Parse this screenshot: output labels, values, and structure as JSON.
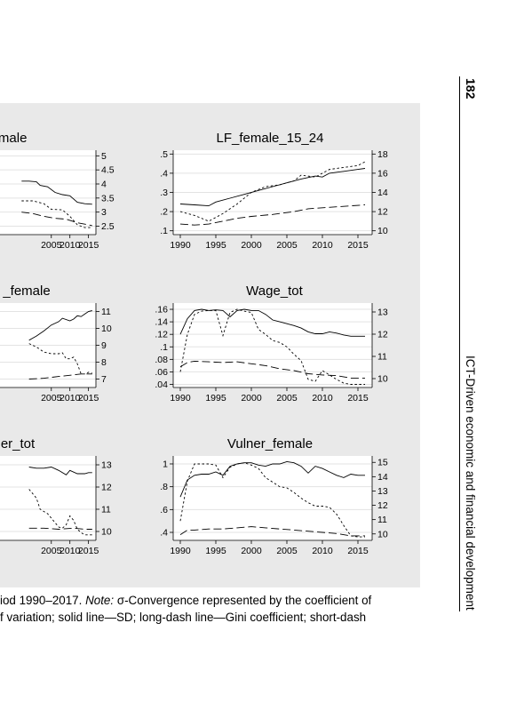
{
  "running_head": {
    "page_number": "182",
    "title": "ICT-Driven economic and financial development"
  },
  "caption": {
    "line1_prefix": "iod 1990–2017.",
    "line1_note_label": "Note:",
    "line1_rest": "σ-Convergence represented by the coefficient of",
    "line2": "f variation; solid line—SD; long-dash line—Gini coefficient; short-dash"
  },
  "legend_semantics": {
    "solid": "SD",
    "long_dash": "Gini coefficient"
  },
  "chart_data": [
    {
      "type": "line",
      "title": "emale",
      "x_ticks": [
        "2005",
        "2010",
        "2015"
      ],
      "y_right_ticks": [
        "5",
        "4.5",
        "4",
        "3.5",
        "3",
        "2.5"
      ],
      "xlim": [
        1990,
        2017
      ],
      "ylim_right": [
        2.2,
        5.2
      ],
      "series": [
        {
          "style": "solid",
          "axis": "right",
          "x": [
            1997,
            1999,
            2001,
            2002,
            2004,
            2006,
            2008,
            2010,
            2012,
            2014,
            2016
          ],
          "y": [
            4.1,
            4.1,
            4.08,
            3.95,
            3.9,
            3.7,
            3.62,
            3.58,
            3.35,
            3.3,
            3.28
          ]
        },
        {
          "style": "long-dash",
          "axis": "right",
          "x": [
            1997,
            2000,
            2003,
            2006,
            2009,
            2012,
            2015,
            2016
          ],
          "y": [
            3.0,
            2.95,
            2.85,
            2.78,
            2.75,
            2.62,
            2.55,
            2.52
          ]
        },
        {
          "style": "short-dash",
          "axis": "right",
          "x": [
            1997,
            2000,
            2003,
            2005,
            2008,
            2010,
            2012,
            2014,
            2016
          ],
          "y": [
            3.4,
            3.4,
            3.3,
            3.1,
            3.08,
            2.85,
            2.55,
            2.45,
            2.45
          ]
        }
      ]
    },
    {
      "type": "line",
      "title": "LF_female_15_24",
      "x_ticks": [
        "1990",
        "1995",
        "2000",
        "2005",
        "2010",
        "2015"
      ],
      "y_left_ticks": [
        ".5",
        ".4",
        ".3",
        ".2",
        ".1"
      ],
      "y_right_ticks": [
        "18",
        "16",
        "14",
        "12",
        "10"
      ],
      "xlim": [
        1989,
        2017
      ],
      "ylim_left": [
        0.08,
        0.52
      ],
      "ylim_right": [
        9.6,
        18.4
      ],
      "series": [
        {
          "style": "solid",
          "axis": "left",
          "x": [
            1990,
            1992,
            1994,
            1995,
            1997,
            1999,
            2001,
            2003,
            2005,
            2007,
            2009,
            2010,
            2011,
            2013,
            2015,
            2016
          ],
          "y": [
            0.24,
            0.235,
            0.23,
            0.25,
            0.27,
            0.29,
            0.31,
            0.33,
            0.35,
            0.37,
            0.385,
            0.38,
            0.4,
            0.41,
            0.42,
            0.425
          ]
        },
        {
          "style": "long-dash",
          "axis": "left",
          "x": [
            1990,
            1992,
            1994,
            1996,
            1998,
            2000,
            2003,
            2006,
            2008,
            2010,
            2012,
            2014,
            2016
          ],
          "y": [
            0.135,
            0.13,
            0.135,
            0.15,
            0.165,
            0.175,
            0.185,
            0.2,
            0.215,
            0.22,
            0.225,
            0.23,
            0.235
          ]
        },
        {
          "style": "short-dash",
          "axis": "left",
          "x": [
            1990,
            1992,
            1994,
            1996,
            1998,
            2000,
            2002,
            2004,
            2006,
            2007,
            2009,
            2011,
            2013,
            2015,
            2016
          ],
          "y": [
            0.2,
            0.18,
            0.15,
            0.19,
            0.24,
            0.3,
            0.33,
            0.34,
            0.36,
            0.39,
            0.38,
            0.42,
            0.43,
            0.44,
            0.46
          ]
        }
      ]
    },
    {
      "type": "line",
      "title": "_female",
      "x_ticks": [
        "2005",
        "2010",
        "2015"
      ],
      "y_right_ticks": [
        "11",
        "10",
        "9",
        "8",
        "7"
      ],
      "xlim": [
        1990,
        2017
      ],
      "ylim_right": [
        6.5,
        11.5
      ],
      "series": [
        {
          "style": "solid",
          "axis": "right",
          "x": [
            1999,
            2001,
            2003,
            2005,
            2007,
            2008,
            2010,
            2011,
            2012,
            2013,
            2014,
            2015,
            2016
          ],
          "y": [
            9.3,
            9.55,
            9.85,
            10.2,
            10.4,
            10.6,
            10.45,
            10.55,
            10.75,
            10.7,
            10.85,
            11.0,
            11.05
          ]
        },
        {
          "style": "short-dash",
          "axis": "right",
          "x": [
            1999,
            2001,
            2003,
            2005,
            2007,
            2008,
            2009,
            2010,
            2011,
            2012,
            2013,
            2014,
            2015,
            2016
          ],
          "y": [
            9.1,
            8.9,
            8.6,
            8.5,
            8.5,
            8.55,
            8.2,
            8.2,
            8.3,
            7.9,
            7.3,
            7.3,
            7.4,
            7.35
          ]
        },
        {
          "style": "long-dash",
          "axis": "right",
          "x": [
            1999,
            2003,
            2007,
            2011,
            2013,
            2016
          ],
          "y": [
            7.0,
            7.05,
            7.15,
            7.25,
            7.3,
            7.3
          ]
        }
      ]
    },
    {
      "type": "line",
      "title": "Wage_tot",
      "x_ticks": [
        "1990",
        "1995",
        "2000",
        "2005",
        "2010",
        "2015"
      ],
      "y_left_ticks": [
        ".16",
        ".14",
        ".12",
        ".1",
        ".08",
        ".06",
        ".04"
      ],
      "y_right_ticks": [
        "13",
        "12",
        "11",
        "10"
      ],
      "xlim": [
        1989,
        2017
      ],
      "ylim_left": [
        0.035,
        0.17
      ],
      "ylim_right": [
        9.6,
        13.4
      ],
      "series": [
        {
          "style": "solid",
          "axis": "left",
          "x": [
            1990,
            1991,
            1992,
            1993,
            1994,
            1995,
            1996,
            1997,
            1998,
            1999,
            2000,
            2001,
            2002,
            2003,
            2004,
            2005,
            2006,
            2007,
            2008,
            2009,
            2010,
            2011,
            2012,
            2013,
            2014,
            2015,
            2016
          ],
          "y": [
            0.12,
            0.145,
            0.158,
            0.16,
            0.158,
            0.159,
            0.158,
            0.148,
            0.158,
            0.16,
            0.158,
            0.158,
            0.152,
            0.143,
            0.14,
            0.137,
            0.134,
            0.13,
            0.124,
            0.121,
            0.121,
            0.124,
            0.122,
            0.119,
            0.117,
            0.117,
            0.117
          ]
        },
        {
          "style": "short-dash",
          "axis": "left",
          "x": [
            1990,
            1991,
            1992,
            1993,
            1994,
            1995,
            1996,
            1997,
            1998,
            1999,
            2000,
            2001,
            2002,
            2003,
            2004,
            2005,
            2006,
            2007,
            2008,
            2009,
            2010,
            2011,
            2012,
            2013,
            2014,
            2015,
            2016
          ],
          "y": [
            0.06,
            0.12,
            0.152,
            0.157,
            0.158,
            0.158,
            0.118,
            0.155,
            0.16,
            0.157,
            0.155,
            0.128,
            0.12,
            0.11,
            0.107,
            0.1,
            0.088,
            0.078,
            0.048,
            0.045,
            0.062,
            0.055,
            0.048,
            0.042,
            0.04,
            0.04,
            0.04
          ]
        },
        {
          "style": "long-dash",
          "axis": "left",
          "x": [
            1990,
            1991,
            1992,
            1994,
            1996,
            1998,
            2000,
            2002,
            2004,
            2006,
            2008,
            2010,
            2012,
            2014,
            2016
          ],
          "y": [
            0.068,
            0.075,
            0.077,
            0.076,
            0.075,
            0.076,
            0.073,
            0.07,
            0.065,
            0.062,
            0.057,
            0.055,
            0.054,
            0.05,
            0.05
          ]
        }
      ]
    },
    {
      "type": "line",
      "title": "er_tot",
      "x_ticks": [
        "2005",
        "2010",
        "2015"
      ],
      "y_right_ticks": [
        "13",
        "12",
        "11",
        "10"
      ],
      "xlim": [
        1990,
        2017
      ],
      "ylim_right": [
        9.6,
        13.4
      ],
      "series": [
        {
          "style": "solid",
          "axis": "right",
          "x": [
            1999,
            2001,
            2003,
            2005,
            2007,
            2009,
            2010,
            2012,
            2014,
            2015,
            2016
          ],
          "y": [
            12.9,
            12.85,
            12.85,
            12.9,
            12.75,
            12.55,
            12.75,
            12.6,
            12.6,
            12.65,
            12.65
          ]
        },
        {
          "style": "short-dash",
          "axis": "right",
          "x": [
            1999,
            2001,
            2002,
            2004,
            2005,
            2007,
            2008,
            2009,
            2010,
            2011,
            2012,
            2013,
            2014,
            2015,
            2016
          ],
          "y": [
            11.9,
            11.5,
            11.0,
            10.8,
            10.6,
            10.2,
            10.15,
            10.3,
            10.7,
            10.5,
            10.1,
            9.95,
            9.85,
            9.85,
            9.85
          ]
        },
        {
          "style": "long-dash",
          "axis": "right",
          "x": [
            1999,
            2003,
            2007,
            2011,
            2014,
            2016
          ],
          "y": [
            10.15,
            10.15,
            10.1,
            10.15,
            10.1,
            10.1
          ]
        }
      ]
    },
    {
      "type": "line",
      "title": "Vulner_female",
      "x_ticks": [
        "1990",
        "1995",
        "2000",
        "2005",
        "2010",
        "2015"
      ],
      "y_left_ticks": [
        "1",
        ".8",
        ".6",
        ".4"
      ],
      "y_right_ticks": [
        "15",
        "14",
        "13",
        "12",
        "11",
        "10"
      ],
      "xlim": [
        1989,
        2017
      ],
      "ylim_left": [
        0.33,
        1.07
      ],
      "ylim_right": [
        9.55,
        15.45
      ],
      "series": [
        {
          "style": "solid",
          "axis": "left",
          "x": [
            1990,
            1991,
            1992,
            1993,
            1994,
            1995,
            1996,
            1997,
            1998,
            1999,
            2000,
            2001,
            2002,
            2003,
            2004,
            2005,
            2006,
            2007,
            2008,
            2009,
            2010,
            2011,
            2012,
            2013,
            2014,
            2015,
            2016
          ],
          "y": [
            0.71,
            0.86,
            0.9,
            0.91,
            0.91,
            0.93,
            0.9,
            0.98,
            1.0,
            1.01,
            1.01,
            0.99,
            0.98,
            1.0,
            1.0,
            1.02,
            1.01,
            0.98,
            0.92,
            0.98,
            0.96,
            0.93,
            0.9,
            0.88,
            0.91,
            0.9,
            0.9
          ]
        },
        {
          "style": "short-dash",
          "axis": "left",
          "x": [
            1990,
            1991,
            1992,
            1993,
            1994,
            1995,
            1996,
            1997,
            1998,
            1999,
            2000,
            2001,
            2002,
            2003,
            2004,
            2005,
            2006,
            2007,
            2008,
            2009,
            2010,
            2011,
            2012,
            2013,
            2014,
            2015,
            2016
          ],
          "y": [
            0.5,
            0.85,
            1.0,
            1.0,
            1.0,
            0.99,
            0.88,
            0.97,
            1.0,
            1.01,
            0.99,
            0.96,
            0.88,
            0.84,
            0.8,
            0.79,
            0.75,
            0.7,
            0.66,
            0.63,
            0.63,
            0.62,
            0.56,
            0.46,
            0.37,
            0.36,
            0.36
          ]
        },
        {
          "style": "long-dash",
          "axis": "left",
          "x": [
            1990,
            1991,
            1992,
            1994,
            1996,
            1998,
            2000,
            2002,
            2004,
            2006,
            2008,
            2010,
            2012,
            2014,
            2016
          ],
          "y": [
            0.38,
            0.42,
            0.42,
            0.43,
            0.43,
            0.44,
            0.45,
            0.44,
            0.43,
            0.42,
            0.41,
            0.4,
            0.39,
            0.37,
            0.37
          ]
        }
      ]
    }
  ]
}
